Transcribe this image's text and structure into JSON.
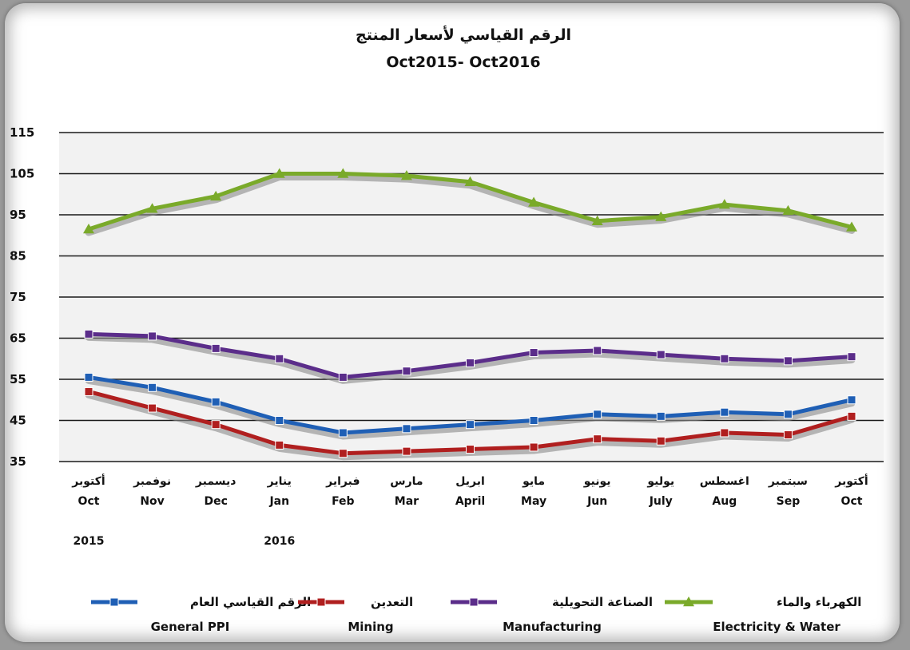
{
  "chart_data": {
    "type": "line",
    "title": "الرقم القياسي لأسعار المنتج",
    "subtitle": "Oct2015- Oct2016",
    "categories": [
      {
        "ar": "أكتوبر",
        "en": "Oct"
      },
      {
        "ar": "نوفمبر",
        "en": "Nov"
      },
      {
        "ar": "ديسمبر",
        "en": "Dec"
      },
      {
        "ar": "يناير",
        "en": "Jan"
      },
      {
        "ar": "فبراير",
        "en": "Feb"
      },
      {
        "ar": "مارس",
        "en": "Mar"
      },
      {
        "ar": "ابريل",
        "en": "April"
      },
      {
        "ar": "مايو",
        "en": "May"
      },
      {
        "ar": "يونيو",
        "en": "Jun"
      },
      {
        "ar": "يوليو",
        "en": "July"
      },
      {
        "ar": "اغسطس",
        "en": "Aug"
      },
      {
        "ar": "سبتمبر",
        "en": "Sep"
      },
      {
        "ar": "أكتوبر",
        "en": "Oct"
      }
    ],
    "years": [
      {
        "label": "2015",
        "category_index": 0
      },
      {
        "label": "2016",
        "category_index": 3
      }
    ],
    "y_ticks": [
      115,
      105,
      95,
      85,
      75,
      65,
      55,
      45,
      35
    ],
    "ylim": [
      35,
      115
    ],
    "grid": true,
    "legend_position": "bottom",
    "series": [
      {
        "name_ar": "الرقم القياسي العام",
        "name": "General PPI",
        "color": "#1f5fb5",
        "marker": "square",
        "values": [
          55.5,
          53,
          49.5,
          45,
          42,
          43,
          44,
          45,
          46.5,
          46,
          47,
          46.5,
          50
        ]
      },
      {
        "name_ar": "التعدين",
        "name": "Mining",
        "color": "#b01f1f",
        "marker": "square",
        "values": [
          52,
          48,
          44,
          39,
          37,
          37.5,
          38,
          38.5,
          40.5,
          40,
          42,
          41.5,
          46
        ]
      },
      {
        "name_ar": "الصناعة التحويلية",
        "name": "Manufacturing",
        "color": "#5b2d8a",
        "marker": "square",
        "values": [
          66,
          65.5,
          62.5,
          60,
          55.5,
          57,
          59,
          61.5,
          62,
          61,
          60,
          59.5,
          60.5
        ]
      },
      {
        "name_ar": "الكهرباء والماء",
        "name": "Electricity & Water",
        "color": "#7aaa2a",
        "marker": "triangle",
        "values": [
          91.5,
          96.5,
          99.5,
          105,
          105,
          104.5,
          103,
          98,
          93.5,
          94.5,
          97.5,
          96,
          92
        ]
      }
    ]
  }
}
